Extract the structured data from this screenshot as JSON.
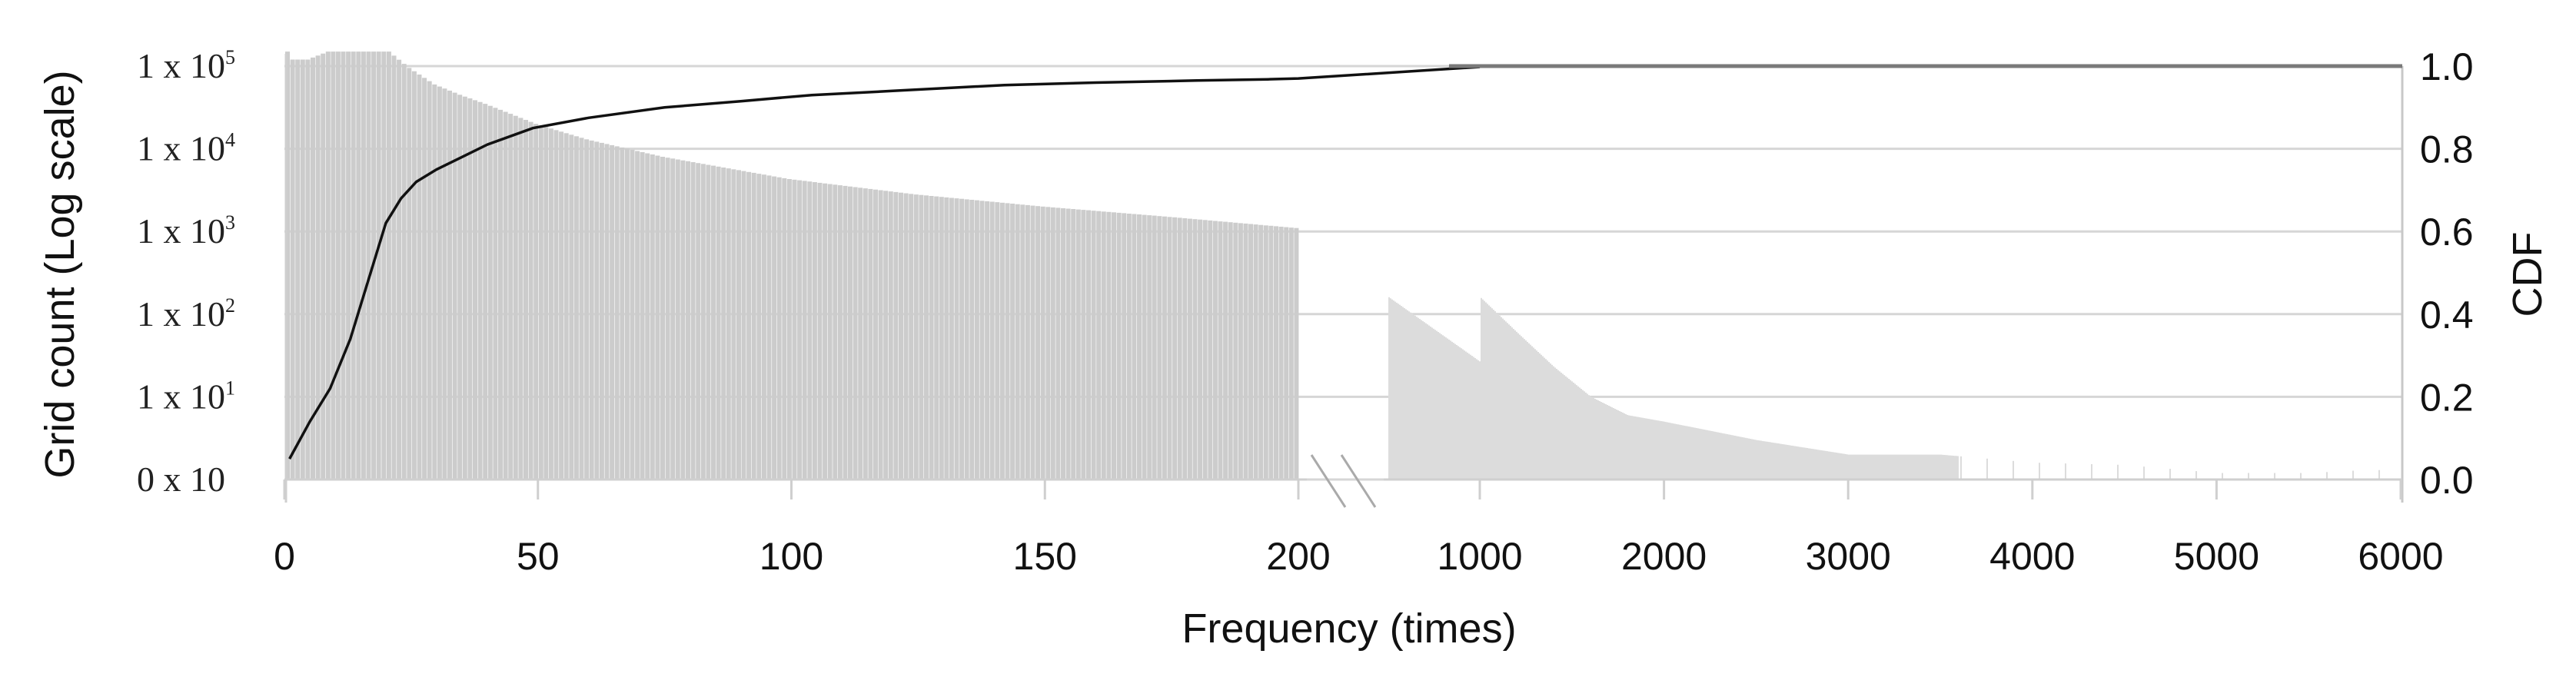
{
  "chart_data": {
    "type": "bar+line",
    "title": "",
    "xlabel": "Frequency (times)",
    "ylabel_left": "Grid count (Log scale)",
    "ylabel_right": "CDF",
    "y_left_scale": "log",
    "y_left_ticks": [
      {
        "label_base": "0 x 10",
        "exp": "",
        "value": 1
      },
      {
        "label_base": "1 x 10",
        "exp": "1",
        "value": 10
      },
      {
        "label_base": "1 x 10",
        "exp": "2",
        "value": 100
      },
      {
        "label_base": "1 x 10",
        "exp": "3",
        "value": 1000
      },
      {
        "label_base": "1 x 10",
        "exp": "4",
        "value": 10000
      },
      {
        "label_base": "1 x 10",
        "exp": "5",
        "value": 100000
      }
    ],
    "y_right_ticks": [
      "0.0",
      "0.2",
      "0.4",
      "0.6",
      "0.8",
      "1.0"
    ],
    "ylim_right": [
      0,
      1
    ],
    "x_axis_break": {
      "after": 200,
      "before": 1000,
      "marker": "//"
    },
    "x_ticks_left_segment": [
      "0",
      "50",
      "100",
      "150",
      "200"
    ],
    "x_ticks_right_segment": [
      "1000",
      "2000",
      "3000",
      "4000",
      "5000",
      "6000"
    ],
    "grid": {
      "horizontal": true,
      "vertical": false
    },
    "legend": null,
    "series": [
      {
        "name": "Grid count",
        "type": "bar",
        "axis": "left",
        "color": "#cccccc",
        "envelope_segment_1": {
          "x": [
            1,
            2,
            5,
            9,
            15,
            21,
            25,
            30,
            35,
            40,
            50,
            60,
            75,
            100,
            125,
            150,
            175,
            200
          ],
          "values": [
            150000,
            120000,
            120000,
            150000,
            150000,
            150000,
            95000,
            60000,
            45000,
            35000,
            20000,
            13000,
            8000,
            4300,
            2800,
            2000,
            1500,
            1100
          ]
        },
        "envelope_segment_2": {
          "color": "#dcdcdc",
          "x": [
            1000,
            1200,
            1400,
            1600,
            1800,
            2000,
            2500,
            3000,
            3500,
            4000,
            4500,
            5000,
            5500,
            5800
          ],
          "values": [
            160,
            60,
            23,
            10,
            6,
            5,
            3,
            2,
            2,
            1.6,
            1.5,
            1.2,
            1.2,
            1.3
          ]
        }
      },
      {
        "name": "CDF",
        "type": "line",
        "axis": "right",
        "color": "#111111",
        "x": [
          1,
          5,
          9,
          13,
          17,
          20,
          23,
          26,
          30,
          35,
          40,
          49,
          60,
          75,
          90,
          104,
          120,
          142,
          160,
          180,
          194,
          200,
          1000,
          1300,
          6000
        ],
        "values": [
          0.05,
          0.14,
          0.22,
          0.34,
          0.5,
          0.62,
          0.68,
          0.72,
          0.75,
          0.78,
          0.81,
          0.85,
          0.875,
          0.9,
          0.915,
          0.93,
          0.94,
          0.954,
          0.96,
          0.965,
          0.968,
          0.97,
          0.998,
          1.0,
          1.0
        ]
      }
    ]
  }
}
